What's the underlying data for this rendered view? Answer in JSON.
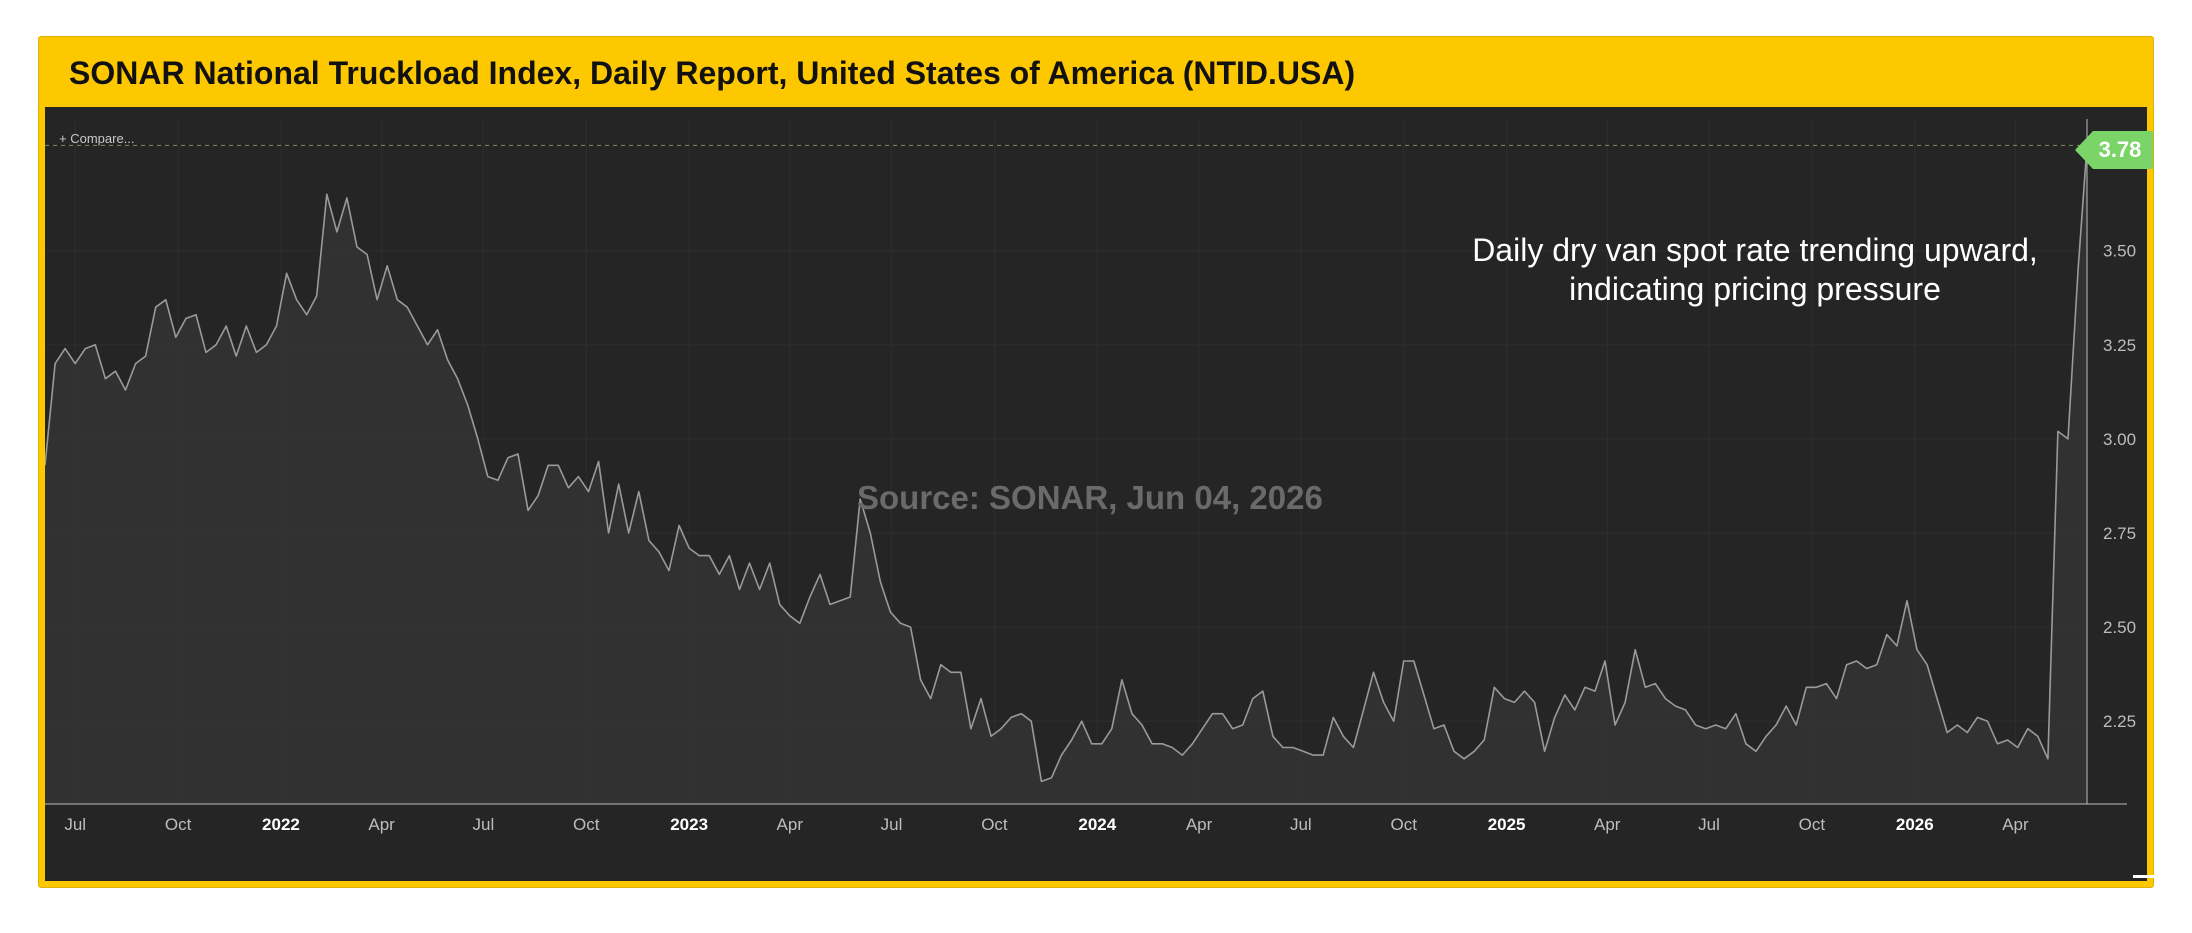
{
  "title": "SONAR National Truckload Index, Daily Report, United States of America (NTID.USA)",
  "compare_label": "+ Compare...",
  "watermark": "Source: SONAR, Jun 04, 2026",
  "annotation_line1": "Daily dry van spot rate trending upward,",
  "annotation_line2": "indicating pricing pressure",
  "last_value_badge": "3.78",
  "colors": {
    "frame": "#fec800",
    "background": "#252525",
    "line": "#9a9a9a",
    "area": "#333333",
    "badge": "#7bd468",
    "grid": "#2e2e2e"
  },
  "chart_data": {
    "type": "area",
    "title": "SONAR National Truckload Index, Daily Report, United States of America (NTID.USA)",
    "xlabel": "",
    "ylabel": "",
    "ylim": [
      2.03,
      3.85
    ],
    "grid": true,
    "legend": "none",
    "x_ticks": [
      {
        "label": "Jul",
        "date": "2021-07-01",
        "bold": false
      },
      {
        "label": "Oct",
        "date": "2021-10-01",
        "bold": false
      },
      {
        "label": "2022",
        "date": "2022-01-01",
        "bold": true
      },
      {
        "label": "Apr",
        "date": "2022-04-01",
        "bold": false
      },
      {
        "label": "Jul",
        "date": "2022-07-01",
        "bold": false
      },
      {
        "label": "Oct",
        "date": "2022-10-01",
        "bold": false
      },
      {
        "label": "2023",
        "date": "2023-01-01",
        "bold": true
      },
      {
        "label": "Apr",
        "date": "2023-04-01",
        "bold": false
      },
      {
        "label": "Jul",
        "date": "2023-07-01",
        "bold": false
      },
      {
        "label": "Oct",
        "date": "2023-10-01",
        "bold": false
      },
      {
        "label": "2024",
        "date": "2024-01-01",
        "bold": true
      },
      {
        "label": "Apr",
        "date": "2024-04-01",
        "bold": false
      },
      {
        "label": "Jul",
        "date": "2024-07-01",
        "bold": false
      },
      {
        "label": "Oct",
        "date": "2024-10-01",
        "bold": false
      },
      {
        "label": "2025",
        "date": "2025-01-01",
        "bold": true
      },
      {
        "label": "Apr",
        "date": "2025-04-01",
        "bold": false
      },
      {
        "label": "Jul",
        "date": "2025-07-01",
        "bold": false
      },
      {
        "label": "Oct",
        "date": "2025-10-01",
        "bold": false
      },
      {
        "label": "2026",
        "date": "2026-01-01",
        "bold": true
      },
      {
        "label": "Apr",
        "date": "2026-04-01",
        "bold": false
      }
    ],
    "y_ticks": [
      "2.25",
      "2.50",
      "2.75",
      "3.00",
      "3.25",
      "3.50"
    ],
    "reference_line": 3.78,
    "series": [
      {
        "points": [
          [
            "2021-06-04",
            2.93
          ],
          [
            "2021-06-13",
            3.2
          ],
          [
            "2021-06-22",
            3.24
          ],
          [
            "2021-07-01",
            3.2
          ],
          [
            "2021-07-10",
            3.24
          ],
          [
            "2021-07-19",
            3.25
          ],
          [
            "2021-07-28",
            3.16
          ],
          [
            "2021-08-06",
            3.18
          ],
          [
            "2021-08-15",
            3.13
          ],
          [
            "2021-08-24",
            3.2
          ],
          [
            "2021-09-02",
            3.22
          ],
          [
            "2021-09-11",
            3.35
          ],
          [
            "2021-09-20",
            3.37
          ],
          [
            "2021-09-29",
            3.27
          ],
          [
            "2021-10-08",
            3.32
          ],
          [
            "2021-10-17",
            3.33
          ],
          [
            "2021-10-26",
            3.23
          ],
          [
            "2021-11-04",
            3.25
          ],
          [
            "2021-11-13",
            3.3
          ],
          [
            "2021-11-22",
            3.22
          ],
          [
            "2021-12-01",
            3.3
          ],
          [
            "2021-12-10",
            3.23
          ],
          [
            "2021-12-19",
            3.25
          ],
          [
            "2021-12-28",
            3.3
          ],
          [
            "2022-01-06",
            3.44
          ],
          [
            "2022-01-15",
            3.37
          ],
          [
            "2022-01-24",
            3.33
          ],
          [
            "2022-02-02",
            3.38
          ],
          [
            "2022-02-11",
            3.65
          ],
          [
            "2022-02-20",
            3.55
          ],
          [
            "2022-03-01",
            3.64
          ],
          [
            "2022-03-10",
            3.51
          ],
          [
            "2022-03-19",
            3.49
          ],
          [
            "2022-03-28",
            3.37
          ],
          [
            "2022-04-06",
            3.46
          ],
          [
            "2022-04-15",
            3.37
          ],
          [
            "2022-04-24",
            3.35
          ],
          [
            "2022-05-03",
            3.3
          ],
          [
            "2022-05-12",
            3.25
          ],
          [
            "2022-05-21",
            3.29
          ],
          [
            "2022-05-30",
            3.21
          ],
          [
            "2022-06-08",
            3.16
          ],
          [
            "2022-06-17",
            3.09
          ],
          [
            "2022-06-26",
            3.0
          ],
          [
            "2022-07-05",
            2.9
          ],
          [
            "2022-07-14",
            2.89
          ],
          [
            "2022-07-23",
            2.95
          ],
          [
            "2022-08-01",
            2.96
          ],
          [
            "2022-08-10",
            2.81
          ],
          [
            "2022-08-19",
            2.85
          ],
          [
            "2022-08-28",
            2.93
          ],
          [
            "2022-09-06",
            2.93
          ],
          [
            "2022-09-15",
            2.87
          ],
          [
            "2022-09-24",
            2.9
          ],
          [
            "2022-10-03",
            2.86
          ],
          [
            "2022-10-12",
            2.94
          ],
          [
            "2022-10-21",
            2.75
          ],
          [
            "2022-10-30",
            2.88
          ],
          [
            "2022-11-08",
            2.75
          ],
          [
            "2022-11-17",
            2.86
          ],
          [
            "2022-11-26",
            2.73
          ],
          [
            "2022-12-05",
            2.7
          ],
          [
            "2022-12-14",
            2.65
          ],
          [
            "2022-12-23",
            2.77
          ],
          [
            "2023-01-01",
            2.71
          ],
          [
            "2023-01-10",
            2.69
          ],
          [
            "2023-01-19",
            2.69
          ],
          [
            "2023-01-28",
            2.64
          ],
          [
            "2023-02-06",
            2.69
          ],
          [
            "2023-02-15",
            2.6
          ],
          [
            "2023-02-24",
            2.67
          ],
          [
            "2023-03-05",
            2.6
          ],
          [
            "2023-03-14",
            2.67
          ],
          [
            "2023-03-23",
            2.56
          ],
          [
            "2023-04-01",
            2.53
          ],
          [
            "2023-04-10",
            2.51
          ],
          [
            "2023-04-19",
            2.58
          ],
          [
            "2023-04-28",
            2.64
          ],
          [
            "2023-05-07",
            2.56
          ],
          [
            "2023-05-16",
            2.57
          ],
          [
            "2023-05-25",
            2.58
          ],
          [
            "2023-06-03",
            2.84
          ],
          [
            "2023-06-12",
            2.75
          ],
          [
            "2023-06-21",
            2.62
          ],
          [
            "2023-06-30",
            2.54
          ],
          [
            "2023-07-09",
            2.51
          ],
          [
            "2023-07-18",
            2.5
          ],
          [
            "2023-07-27",
            2.36
          ],
          [
            "2023-08-05",
            2.31
          ],
          [
            "2023-08-14",
            2.4
          ],
          [
            "2023-08-23",
            2.38
          ],
          [
            "2023-09-01",
            2.38
          ],
          [
            "2023-09-10",
            2.23
          ],
          [
            "2023-09-19",
            2.31
          ],
          [
            "2023-09-28",
            2.21
          ],
          [
            "2023-10-07",
            2.23
          ],
          [
            "2023-10-16",
            2.26
          ],
          [
            "2023-10-25",
            2.27
          ],
          [
            "2023-11-03",
            2.25
          ],
          [
            "2023-11-12",
            2.09
          ],
          [
            "2023-11-21",
            2.1
          ],
          [
            "2023-11-30",
            2.16
          ],
          [
            "2023-12-09",
            2.2
          ],
          [
            "2023-12-18",
            2.25
          ],
          [
            "2023-12-27",
            2.19
          ],
          [
            "2024-01-05",
            2.19
          ],
          [
            "2024-01-14",
            2.23
          ],
          [
            "2024-01-23",
            2.36
          ],
          [
            "2024-02-01",
            2.27
          ],
          [
            "2024-02-10",
            2.24
          ],
          [
            "2024-02-19",
            2.19
          ],
          [
            "2024-02-28",
            2.19
          ],
          [
            "2024-03-08",
            2.18
          ],
          [
            "2024-03-17",
            2.16
          ],
          [
            "2024-03-26",
            2.19
          ],
          [
            "2024-04-04",
            2.23
          ],
          [
            "2024-04-13",
            2.27
          ],
          [
            "2024-04-22",
            2.27
          ],
          [
            "2024-05-01",
            2.23
          ],
          [
            "2024-05-10",
            2.24
          ],
          [
            "2024-05-19",
            2.31
          ],
          [
            "2024-05-28",
            2.33
          ],
          [
            "2024-06-06",
            2.21
          ],
          [
            "2024-06-15",
            2.18
          ],
          [
            "2024-06-24",
            2.18
          ],
          [
            "2024-07-03",
            2.17
          ],
          [
            "2024-07-12",
            2.16
          ],
          [
            "2024-07-21",
            2.16
          ],
          [
            "2024-07-30",
            2.26
          ],
          [
            "2024-08-08",
            2.21
          ],
          [
            "2024-08-17",
            2.18
          ],
          [
            "2024-08-26",
            2.28
          ],
          [
            "2024-09-04",
            2.38
          ],
          [
            "2024-09-13",
            2.3
          ],
          [
            "2024-09-22",
            2.25
          ],
          [
            "2024-10-01",
            2.41
          ],
          [
            "2024-10-10",
            2.41
          ],
          [
            "2024-10-19",
            2.32
          ],
          [
            "2024-10-28",
            2.23
          ],
          [
            "2024-11-06",
            2.24
          ],
          [
            "2024-11-15",
            2.17
          ],
          [
            "2024-11-24",
            2.15
          ],
          [
            "2024-12-03",
            2.17
          ],
          [
            "2024-12-12",
            2.2
          ],
          [
            "2024-12-21",
            2.34
          ],
          [
            "2024-12-30",
            2.31
          ],
          [
            "2025-01-08",
            2.3
          ],
          [
            "2025-01-17",
            2.33
          ],
          [
            "2025-01-26",
            2.3
          ],
          [
            "2025-02-04",
            2.17
          ],
          [
            "2025-02-13",
            2.26
          ],
          [
            "2025-02-22",
            2.32
          ],
          [
            "2025-03-03",
            2.28
          ],
          [
            "2025-03-12",
            2.34
          ],
          [
            "2025-03-21",
            2.33
          ],
          [
            "2025-03-30",
            2.41
          ],
          [
            "2025-04-08",
            2.24
          ],
          [
            "2025-04-17",
            2.3
          ],
          [
            "2025-04-26",
            2.44
          ],
          [
            "2025-05-05",
            2.34
          ],
          [
            "2025-05-14",
            2.35
          ],
          [
            "2025-05-23",
            2.31
          ],
          [
            "2025-06-01",
            2.29
          ],
          [
            "2025-06-10",
            2.28
          ],
          [
            "2025-06-19",
            2.24
          ],
          [
            "2025-06-28",
            2.23
          ],
          [
            "2025-07-07",
            2.24
          ],
          [
            "2025-07-16",
            2.23
          ],
          [
            "2025-07-25",
            2.27
          ],
          [
            "2025-08-03",
            2.19
          ],
          [
            "2025-08-12",
            2.17
          ],
          [
            "2025-08-21",
            2.21
          ],
          [
            "2025-08-30",
            2.24
          ],
          [
            "2025-09-08",
            2.29
          ],
          [
            "2025-09-17",
            2.24
          ],
          [
            "2025-09-26",
            2.34
          ],
          [
            "2025-10-05",
            2.34
          ],
          [
            "2025-10-14",
            2.35
          ],
          [
            "2025-10-23",
            2.31
          ],
          [
            "2025-11-01",
            2.4
          ],
          [
            "2025-11-10",
            2.41
          ],
          [
            "2025-11-19",
            2.39
          ],
          [
            "2025-11-28",
            2.4
          ],
          [
            "2025-12-07",
            2.48
          ],
          [
            "2025-12-16",
            2.45
          ],
          [
            "2025-12-25",
            2.57
          ],
          [
            "2026-01-03",
            2.44
          ],
          [
            "2026-01-12",
            2.4
          ],
          [
            "2026-01-21",
            2.31
          ],
          [
            "2026-01-30",
            2.22
          ],
          [
            "2026-02-08",
            2.24
          ],
          [
            "2026-02-17",
            2.22
          ],
          [
            "2026-02-26",
            2.26
          ],
          [
            "2026-03-07",
            2.25
          ],
          [
            "2026-03-16",
            2.19
          ],
          [
            "2026-03-25",
            2.2
          ],
          [
            "2026-04-03",
            2.18
          ],
          [
            "2026-04-12",
            2.23
          ],
          [
            "2026-04-21",
            2.21
          ],
          [
            "2026-04-30",
            2.15
          ],
          [
            "2026-05-09",
            3.02
          ],
          [
            "2026-05-18",
            3.0
          ],
          [
            "2026-05-27",
            3.45
          ],
          [
            "2026-06-04",
            3.78
          ]
        ]
      }
    ]
  }
}
